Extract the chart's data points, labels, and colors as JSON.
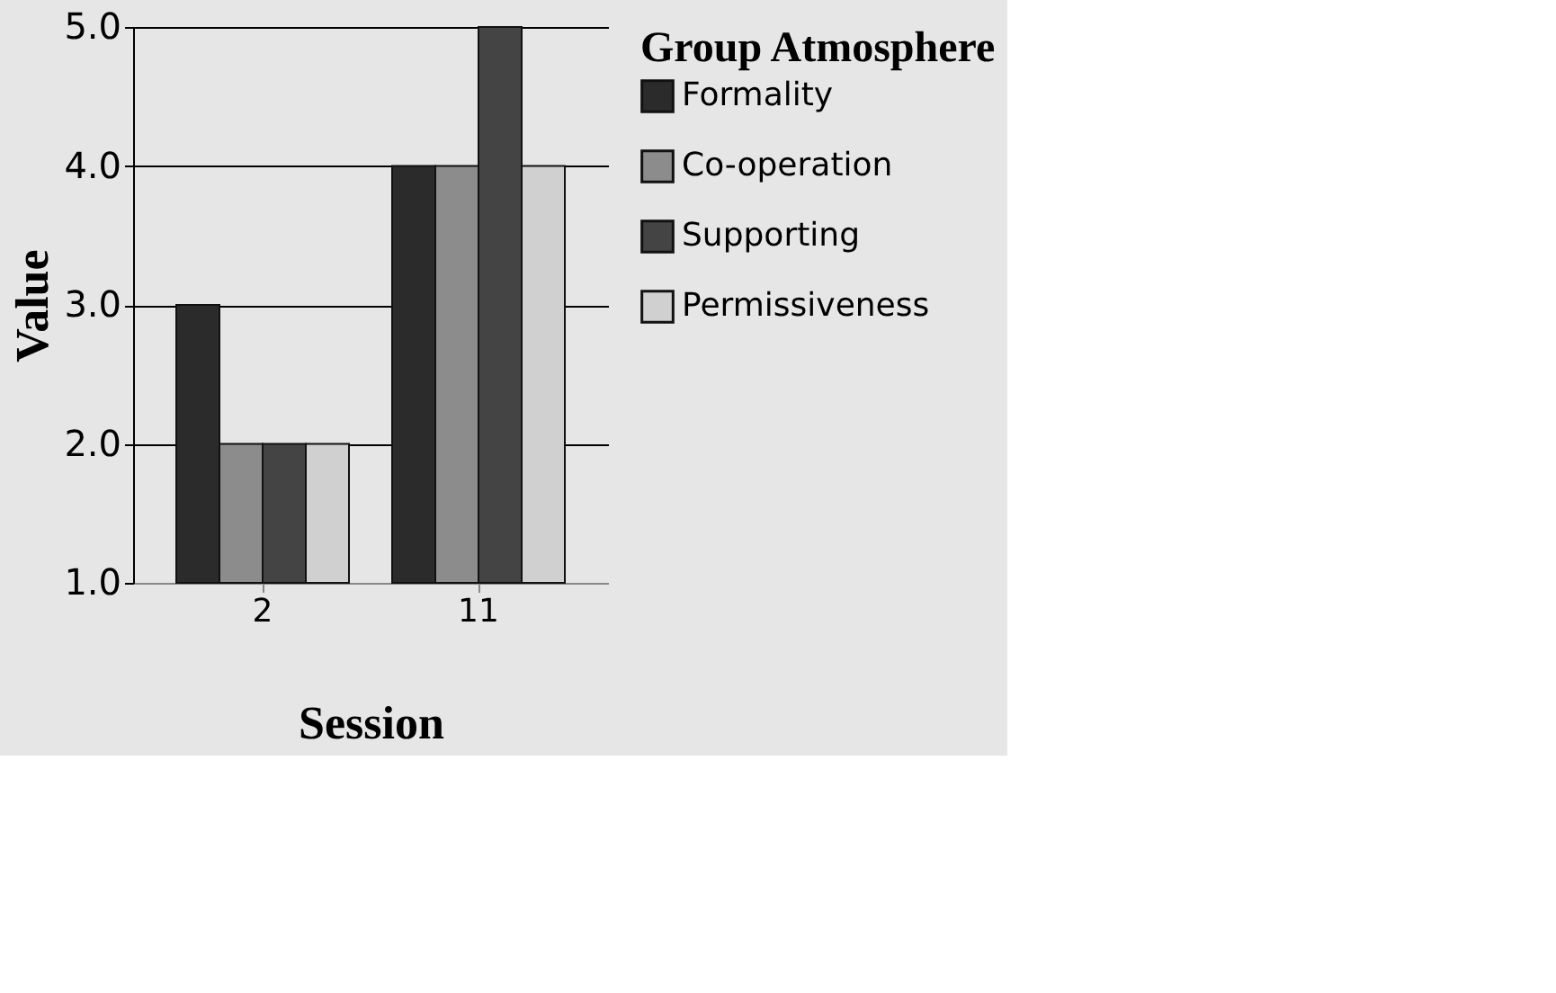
{
  "chart_data": {
    "type": "bar",
    "xlabel": "Session",
    "ylabel": "Value",
    "legend_title": "Group Atmosphere",
    "categories": [
      "2",
      "11"
    ],
    "series": [
      {
        "name": "Formality",
        "color": "#2b2b2b",
        "values": [
          3,
          4
        ]
      },
      {
        "name": "Co-operation",
        "color": "#8c8c8c",
        "values": [
          2,
          4
        ]
      },
      {
        "name": "Supporting",
        "color": "#444444",
        "values": [
          2,
          5
        ]
      },
      {
        "name": "Permissiveness",
        "color": "#d0d0d0",
        "values": [
          2,
          4
        ]
      }
    ],
    "ylim": [
      1,
      5
    ],
    "yticks": [
      {
        "value": 1,
        "label": "1.0"
      },
      {
        "value": 2,
        "label": "2.0"
      },
      {
        "value": 3,
        "label": "3.0"
      },
      {
        "value": 4,
        "label": "4.0"
      },
      {
        "value": 5,
        "label": "5.0"
      }
    ],
    "grid": "y",
    "legend": "right"
  }
}
